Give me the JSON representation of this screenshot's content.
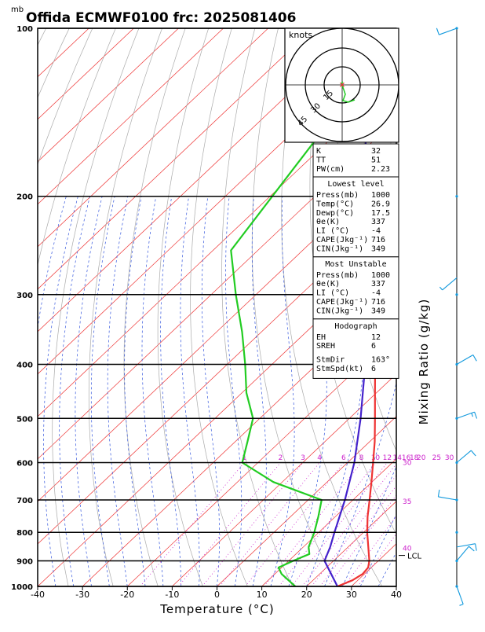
{
  "header": {
    "pressure_unit": "mb",
    "title": "Offida ECMWF0100  frc: 2025081406"
  },
  "chart_data": {
    "type": "skew-t",
    "xlabel": "Temperature (°C)",
    "right_label": "Mixing Ratio (g/kg)",
    "x_ticks": [
      -40,
      -30,
      -20,
      -10,
      0,
      10,
      20,
      30,
      40
    ],
    "xlim": [
      -40,
      40
    ],
    "pressure_levels": [
      100,
      200,
      300,
      400,
      500,
      600,
      700,
      800,
      900,
      1000
    ],
    "ylim": [
      1000,
      100
    ],
    "y_scale": "log",
    "temperature_profile": [
      {
        "p": 1000,
        "t": 26.9
      },
      {
        "p": 975,
        "t": 28.8
      },
      {
        "p": 950,
        "t": 29.6
      },
      {
        "p": 925,
        "t": 29.3
      },
      {
        "p": 900,
        "t": 28.0
      },
      {
        "p": 850,
        "t": 24.5
      },
      {
        "p": 800,
        "t": 20.8
      },
      {
        "p": 750,
        "t": 17.2
      },
      {
        "p": 700,
        "t": 13.7
      },
      {
        "p": 650,
        "t": 9.9
      },
      {
        "p": 600,
        "t": 5.7
      },
      {
        "p": 550,
        "t": 1.1
      },
      {
        "p": 500,
        "t": -4.3
      },
      {
        "p": 450,
        "t": -10.3
      },
      {
        "p": 400,
        "t": -17.0
      },
      {
        "p": 350,
        "t": -25.2
      },
      {
        "p": 300,
        "t": -34.3
      },
      {
        "p": 250,
        "t": -44.5
      },
      {
        "p": 200,
        "t": -55.0
      },
      {
        "p": 150,
        "t": -65.0
      },
      {
        "p": 100,
        "t": -73.0
      }
    ],
    "dewpoint_profile": [
      {
        "p": 1000,
        "t": 17.5
      },
      {
        "p": 950,
        "t": 11.5
      },
      {
        "p": 925,
        "t": 9.3
      },
      {
        "p": 900,
        "t": 11.0
      },
      {
        "p": 875,
        "t": 13.0
      },
      {
        "p": 850,
        "t": 11.2
      },
      {
        "p": 800,
        "t": 9.0
      },
      {
        "p": 750,
        "t": 6.2
      },
      {
        "p": 700,
        "t": 3.0
      },
      {
        "p": 650,
        "t": -12.0
      },
      {
        "p": 600,
        "t": -23.5
      },
      {
        "p": 550,
        "t": -27.3
      },
      {
        "p": 500,
        "t": -31.5
      },
      {
        "p": 450,
        "t": -39.0
      },
      {
        "p": 400,
        "t": -46.0
      },
      {
        "p": 350,
        "t": -54.3
      },
      {
        "p": 300,
        "t": -64.5
      },
      {
        "p": 250,
        "t": -76.0
      },
      {
        "p": 200,
        "t": -79.5
      },
      {
        "p": 150,
        "t": -84.0
      },
      {
        "p": 100,
        "t": -87.0
      }
    ],
    "parcel_profile": [
      {
        "p": 1000,
        "t": 26.9
      },
      {
        "p": 900,
        "t": 18.0
      },
      {
        "p": 850,
        "t": 16.0
      },
      {
        "p": 800,
        "t": 13.5
      },
      {
        "p": 700,
        "t": 8.2
      },
      {
        "p": 600,
        "t": 1.5
      },
      {
        "p": 500,
        "t": -7.5
      },
      {
        "p": 400,
        "t": -19.2
      },
      {
        "p": 300,
        "t": -35.0
      },
      {
        "p": 250,
        "t": -46.0
      },
      {
        "p": 200,
        "t": -59.0
      },
      {
        "p": 150,
        "t": -75.0
      },
      {
        "p": 100,
        "t": -96.0
      }
    ],
    "lcl_label": "LCL",
    "lcl_pressure": 880,
    "mixing_ratio_labels": [
      "1",
      "2",
      "3",
      "4",
      "6",
      "8",
      "10",
      "12",
      "14",
      "16",
      "18",
      "20",
      "25",
      "30"
    ],
    "mixing_ratio_values": [
      1,
      2,
      3,
      4,
      6,
      8,
      10,
      12,
      14,
      16,
      18,
      20,
      25,
      30
    ],
    "right_side_labels": [
      {
        "text": "30",
        "p": 600
      },
      {
        "text": "35",
        "p": 705
      },
      {
        "text": "40",
        "p": 855
      }
    ],
    "wind_barbs": [
      {
        "p": 100,
        "dir": 250,
        "spd": 10
      },
      {
        "p": 280,
        "dir": 230,
        "spd": 5
      },
      {
        "p": 400,
        "dir": 60,
        "spd": 10
      },
      {
        "p": 500,
        "dir": 70,
        "spd": 15
      },
      {
        "p": 600,
        "dir": 50,
        "spd": 10
      },
      {
        "p": 700,
        "dir": 280,
        "spd": 10
      },
      {
        "p": 850,
        "dir": 80,
        "spd": 10
      },
      {
        "p": 900,
        "dir": 40,
        "spd": 10
      },
      {
        "p": 1000,
        "dir": 160,
        "spd": 5
      }
    ]
  },
  "hodograph": {
    "unit_label": "knots",
    "ring_labels": [
      "15",
      "30",
      "45"
    ]
  },
  "indices": {
    "top": [
      {
        "label": "K",
        "value": "32"
      },
      {
        "label": "TT",
        "value": "51"
      },
      {
        "label": "PW(cm)",
        "value": "2.23"
      }
    ],
    "lowest_level": {
      "heading": "Lowest level",
      "rows": [
        {
          "label": "Press(mb)",
          "value": "1000"
        },
        {
          "label": "Temp(°C)",
          "value": "26.9"
        },
        {
          "label": "Dewp(°C)",
          "value": "17.5"
        },
        {
          "label": "θe(K)",
          "value": "337"
        },
        {
          "label": "LI (°C)",
          "value": "-4"
        },
        {
          "label": "CAPE(Jkg⁻¹)",
          "value": "716"
        },
        {
          "label": "CIN(Jkg⁻¹)",
          "value": "349"
        }
      ]
    },
    "most_unstable": {
      "heading": "Most Unstable",
      "rows": [
        {
          "label": "Press(mb)",
          "value": "1000"
        },
        {
          "label": "θe(K)",
          "value": "337"
        },
        {
          "label": "LI (°C)",
          "value": "-4"
        },
        {
          "label": "CAPE(Jkg⁻¹)",
          "value": "716"
        },
        {
          "label": "CIN(Jkg⁻¹)",
          "value": "349"
        }
      ]
    },
    "hodograph_box": {
      "heading": "Hodograph",
      "rows": [
        {
          "label": "EH",
          "value": "12"
        },
        {
          "label": "SREH",
          "value": "6"
        },
        {
          "label": "StmDir",
          "value": "163°"
        },
        {
          "label": "StmSpd(kt)",
          "value": "6"
        }
      ]
    }
  },
  "colors": {
    "isotherm": "#ee3333",
    "dry_adiabat": "#aaaaaa",
    "moist_adiabat": "#3355dd",
    "mixing_ratio": "#cc22cc",
    "temperature": "#ee3333",
    "dewpoint": "#22cc22",
    "parcel": "#4422cc",
    "barb_axis": "#000000",
    "barb": "#1199dd"
  }
}
